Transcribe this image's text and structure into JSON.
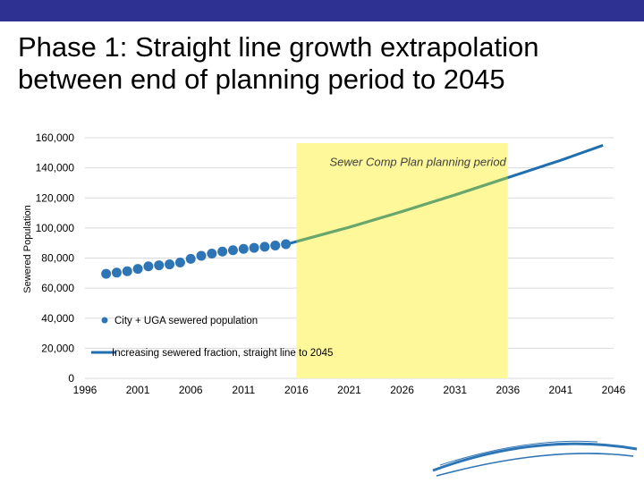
{
  "slide": {
    "title_line1": "Phase 1: Straight line growth extrapolation",
    "title_line2": "between end of planning period to 2045"
  },
  "colors": {
    "top_bar": "#2e3192",
    "highlight": "#fff89a",
    "observed": "#2e75b6",
    "projection_blue": "#1f6fae",
    "projection_green": "#6aa86a",
    "grid": "#d9d9d9",
    "logo": "#2e75b6"
  },
  "chart_data": {
    "type": "line",
    "title": "",
    "xlabel": "",
    "ylabel": "Sewered Population",
    "xlim": [
      1996,
      2046
    ],
    "ylim": [
      0,
      160000
    ],
    "x_ticks": [
      1996,
      2001,
      2006,
      2011,
      2016,
      2021,
      2026,
      2031,
      2036,
      2041,
      2046
    ],
    "x_tick_labels": [
      "1996",
      "2001",
      "2006",
      "2011",
      "2016",
      "2021",
      "2026",
      "2031",
      "2036",
      "2041",
      "2046"
    ],
    "y_ticks": [
      0,
      20000,
      40000,
      60000,
      80000,
      100000,
      120000,
      140000,
      160000
    ],
    "y_tick_labels": [
      "0",
      "20,000",
      "40,000",
      "60,000",
      "80,000",
      "100,000",
      "120,000",
      "140,000",
      "160,000"
    ],
    "grid": "horizontal",
    "highlight_region": {
      "label": "Sewer Comp Plan planning period",
      "x_start": 2016,
      "x_end": 2036
    },
    "series": [
      {
        "name": "City + UGA sewered population",
        "style": "markers",
        "x": [
          1998,
          1999,
          2000,
          2001,
          2002,
          2003,
          2004,
          2005,
          2006,
          2007,
          2008,
          2009,
          2010,
          2011,
          2012,
          2013,
          2014,
          2015
        ],
        "y": [
          69500,
          70300,
          71200,
          72800,
          74500,
          75200,
          75800,
          77000,
          79500,
          81500,
          83000,
          84300,
          85200,
          86100,
          86800,
          87500,
          88300,
          89200
        ]
      },
      {
        "name": "Increasing sewered fraction, straight line to 2045",
        "style": "line",
        "x": [
          2015,
          2016,
          2021,
          2026,
          2031,
          2036,
          2041,
          2045
        ],
        "y": [
          89000,
          91000,
          100500,
          111000,
          122000,
          133500,
          145000,
          155000
        ]
      }
    ],
    "legend_placement": "lower-left"
  }
}
